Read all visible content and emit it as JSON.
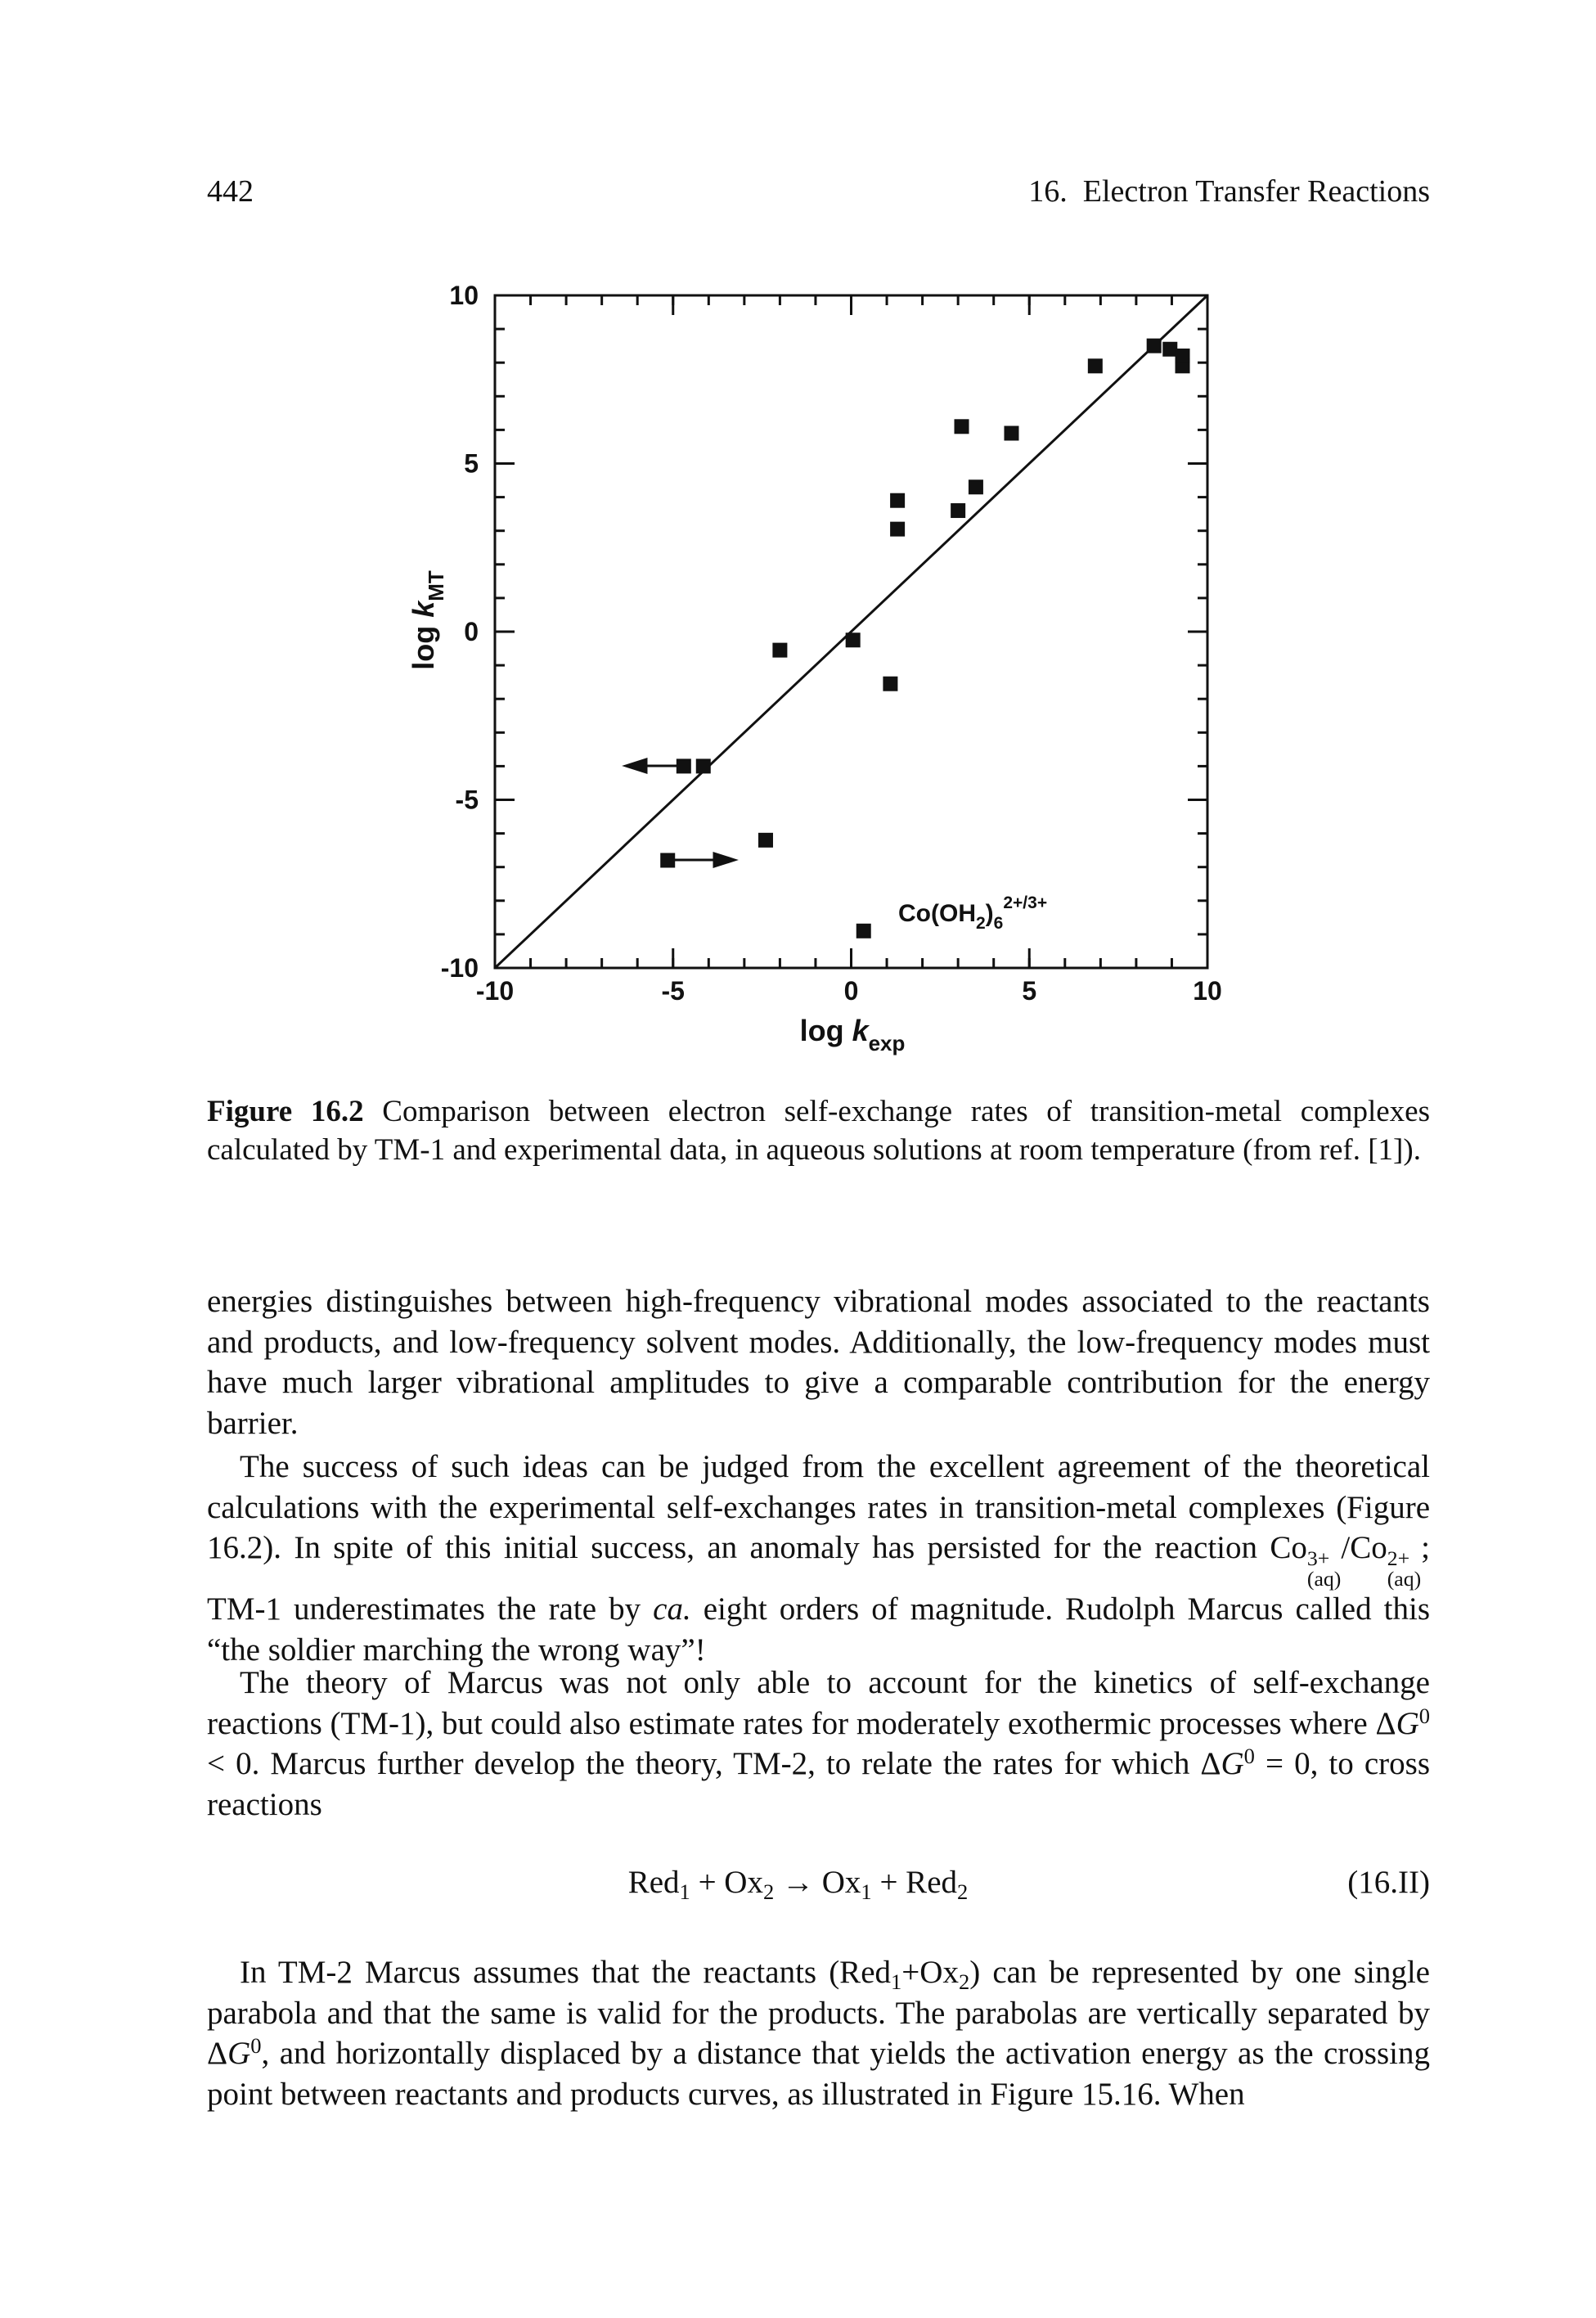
{
  "header": {
    "page_number": "442",
    "running_title": "16.  Electron Transfer Reactions"
  },
  "chart_data": {
    "type": "scatter",
    "x": [
      6.85,
      8.5,
      8.95,
      9.3,
      9.3,
      3.1,
      4.5,
      3.5,
      3.0,
      1.3,
      1.3,
      -2.0,
      0.05,
      1.1,
      -4.7,
      -4.15,
      -2.4,
      -5.15,
      0.35
    ],
    "values": [
      7.9,
      8.5,
      8.4,
      7.9,
      8.2,
      6.1,
      5.9,
      4.3,
      3.6,
      3.9,
      3.05,
      -0.55,
      -0.25,
      -1.55,
      -4.0,
      -4.0,
      -6.2,
      -6.8,
      -8.9
    ],
    "color": "#111111",
    "xlim": [
      -10,
      10
    ],
    "ylim": [
      -10,
      10
    ],
    "xticks": [
      -10,
      -5,
      0,
      5,
      10
    ],
    "yticks": [
      -10,
      -5,
      0,
      5,
      10
    ],
    "minor_tick_step": 1,
    "identity_line": true,
    "x_label": [
      "log ",
      "k",
      "exp"
    ],
    "y_label": [
      "log ",
      "k",
      "MT"
    ],
    "annotation": [
      "Co(OH",
      "2",
      ")",
      "6",
      "2+/3+"
    ]
  },
  "caption": {
    "label": "Figure 16.2",
    "text": " Comparison between electron self-exchange rates of transition-metal complexes calculated by TM-1 and experimental data, in aqueous solutions at room temperature (from ref. [1])."
  },
  "paragraphs": [
    [
      {
        "text": "energies distinguishes between high-frequency vibrational modes associated to the reactants and products, and low-frequency solvent modes. Additionally, the low-frequency modes must have much larger vibrational amplitudes to give a comparable contribution for the energy barrier."
      }
    ],
    [
      {
        "text": "The success of such ideas can be judged from the excellent agreement of the theoretical calculations with the experimental self-exchanges rates in transition-metal complexes (Figure 16.2). In spite of this initial success, an anomaly has persisted for the reaction Co"
      },
      {
        "sup": "3+",
        "sub": "(aq)"
      },
      {
        "text": "/Co"
      },
      {
        "sup": "2+",
        "sub": "(aq)"
      },
      {
        "text": "; TM-1 underestimates the rate by "
      },
      {
        "text": "ca.",
        "style": "i"
      },
      {
        "text": " eight orders of magnitude. Rudolph Marcus called this “the soldier marching the wrong way”!"
      }
    ],
    [
      {
        "text": "The theory of Marcus was not only able to account for the kinetics of self-exchange reactions (TM-1), but could also estimate rates for moderately exothermic processes where Δ"
      },
      {
        "text": "G",
        "style": "i"
      },
      {
        "text": "0",
        "style": "sup"
      },
      {
        "text": " < 0. Marcus further develop the theory, TM-2, to relate the rates for which Δ"
      },
      {
        "text": "G",
        "style": "i"
      },
      {
        "text": "0",
        "style": "sup"
      },
      {
        "text": " = 0, to cross reactions"
      }
    ],
    [
      {
        "text": "In TM-2 Marcus assumes that the reactants (Red"
      },
      {
        "text": "1",
        "style": "sub"
      },
      {
        "text": "+Ox"
      },
      {
        "text": "2",
        "style": "sub"
      },
      {
        "text": ") can be represented by one single parabola and that the same is valid for the products. The parabolas are vertically separated by Δ"
      },
      {
        "text": "G",
        "style": "i"
      },
      {
        "text": "0",
        "style": "sup"
      },
      {
        "text": ", and horizontally displaced by a distance that yields the activation energy as the crossing point between reactants and products curves, as illustrated in Figure 15.16. When"
      }
    ]
  ],
  "equation": {
    "parts": [
      {
        "text": "Red"
      },
      {
        "text": "1",
        "style": "sub"
      },
      {
        "text": " + Ox"
      },
      {
        "text": "2",
        "style": "sub"
      },
      {
        "text": " → Ox"
      },
      {
        "text": "1",
        "style": "sub"
      },
      {
        "text": " + Red"
      },
      {
        "text": "2",
        "style": "sub"
      }
    ],
    "number": "(16.II)"
  }
}
